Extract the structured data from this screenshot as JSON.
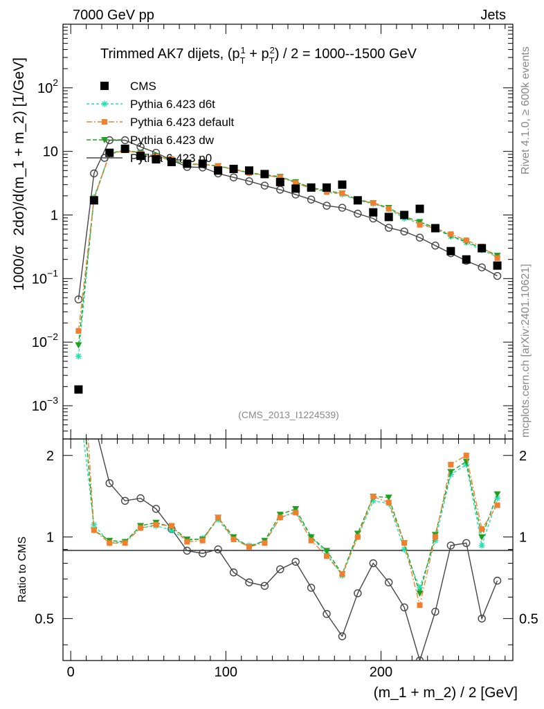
{
  "chart_data": {
    "type": "scatter",
    "header_left": "7000 GeV pp",
    "header_right": "Jets",
    "title": "Trimmed AK7 dijets, (p",
    "title_sub1": "T",
    "title_sup1": "1",
    "title_mid": " + p",
    "title_sub2": "T",
    "title_sup2": "2",
    "title_end": ") / 2 = 1000--1500 GeV",
    "ylabel_part1": "1000/σ",
    "ylabel_part2": "2dσ)/d(m_1 + m_2) [1/GeV]",
    "ratio_ylabel": "Ratio to CMS",
    "xlabel": "(m_1 + m_2) / 2 [GeV]",
    "watermark": "(CMS_2013_I1224539)",
    "side_text_top": "Rivet 4.1.0, ≥ 600k events",
    "side_text_bottom": "mcplots.cern.ch [arXiv:2401.10621]",
    "xlim": [
      -5,
      285
    ],
    "ylim_log": [
      0.0003,
      1000
    ],
    "ratio_ylim": [
      0.35,
      2.3
    ],
    "x_ticks": [
      "0",
      "100",
      "200"
    ],
    "x_tick_values": [
      0,
      100,
      200
    ],
    "y_ticks": [
      "10",
      "10",
      "10",
      "1",
      "10",
      "10",
      "10"
    ],
    "y_tick_exps": [
      "2",
      "",
      "",
      "",
      "−1",
      "−2",
      "−3"
    ],
    "y_tick_values": [
      100,
      10,
      1,
      0.1,
      0.01,
      0.001
    ],
    "ratio_ticks": [
      "2",
      "1",
      "0.5"
    ],
    "ratio_tick_values": [
      2,
      1,
      0.5
    ],
    "x": [
      5,
      15,
      25,
      35,
      45,
      55,
      65,
      75,
      85,
      95,
      105,
      115,
      125,
      135,
      145,
      155,
      165,
      175,
      185,
      195,
      205,
      215,
      225,
      235,
      245,
      255,
      265,
      275
    ],
    "series": [
      {
        "name": "CMS",
        "color": "#000000",
        "marker": "square",
        "values": [
          0.0018,
          1.7,
          9.5,
          11,
          8.5,
          7.5,
          6.8,
          6.4,
          6.4,
          5.0,
          5.3,
          5.0,
          4.4,
          3.3,
          2.6,
          2.7,
          2.7,
          3.0,
          1.7,
          1.1,
          0.93,
          1.0,
          1.25,
          0.62,
          0.27,
          0.2,
          0.3,
          0.16
        ]
      },
      {
        "name": "Pythia 6.423 d6t",
        "color": "#20e0b0",
        "marker": "star",
        "dash": "4,3",
        "values": [
          0.006,
          1.9,
          9.0,
          10.5,
          9.2,
          8.3,
          7.2,
          6.2,
          6.3,
          5.8,
          5.2,
          4.5,
          4.2,
          3.9,
          3.3,
          2.7,
          2.3,
          2.1,
          1.7,
          1.5,
          1.25,
          0.88,
          0.75,
          0.6,
          0.46,
          0.37,
          0.28,
          0.22
        ]
      },
      {
        "name": "Pythia 6.423 default",
        "color": "#f08030",
        "marker": "square-small",
        "dash": "8,3,2,3",
        "values": [
          0.015,
          1.8,
          9.0,
          10.4,
          9.2,
          8.3,
          7.5,
          6.2,
          6.2,
          5.9,
          5.2,
          4.6,
          4.2,
          3.9,
          3.2,
          2.6,
          2.3,
          2.2,
          1.7,
          1.55,
          1.25,
          0.95,
          0.7,
          0.62,
          0.5,
          0.4,
          0.32,
          0.21
        ]
      },
      {
        "name": "Pythia 6.423 dw",
        "color": "#20a020",
        "marker": "triangle-down",
        "dash": "6,3",
        "values": [
          0.009,
          1.8,
          9.2,
          10.6,
          9.4,
          8.5,
          7.4,
          6.3,
          6.3,
          5.9,
          5.3,
          4.6,
          4.3,
          4.0,
          3.3,
          2.7,
          2.4,
          2.2,
          1.75,
          1.55,
          1.3,
          0.95,
          0.78,
          0.63,
          0.47,
          0.38,
          0.3,
          0.23
        ]
      },
      {
        "name": "Pythia 6.423 p0",
        "color": "#444444",
        "marker": "circle-open",
        "dash": "",
        "values": [
          0.047,
          4.5,
          15,
          15,
          11.8,
          9.5,
          7.3,
          5.7,
          5.6,
          4.5,
          3.9,
          3.4,
          2.9,
          2.5,
          2.1,
          1.75,
          1.4,
          1.3,
          1.05,
          0.88,
          0.63,
          0.55,
          0.44,
          0.33,
          0.25,
          0.19,
          0.15,
          0.11
        ]
      }
    ],
    "ratio_series": [
      {
        "name": "Pythia 6.423 d6t",
        "values": [
          3.3,
          1.11,
          0.95,
          0.96,
          1.08,
          1.1,
          1.06,
          0.97,
          0.99,
          1.16,
          0.98,
          0.93,
          0.96,
          1.18,
          1.24,
          1.0,
          0.87,
          0.72,
          1.0,
          1.36,
          1.33,
          0.9,
          0.65,
          0.97,
          1.7,
          1.85,
          0.93,
          1.39
        ]
      },
      {
        "name": "Pythia 6.423 default",
        "values": [
          8.3,
          1.06,
          0.95,
          0.95,
          1.08,
          1.11,
          1.1,
          0.96,
          0.97,
          1.18,
          0.98,
          0.92,
          0.95,
          1.18,
          1.23,
          0.97,
          0.85,
          0.73,
          1.0,
          1.41,
          1.34,
          0.95,
          0.56,
          1.0,
          1.85,
          2.0,
          1.07,
          1.31
        ]
      },
      {
        "name": "Pythia 6.423 dw",
        "values": [
          5.0,
          1.06,
          0.97,
          0.96,
          1.1,
          1.13,
          1.09,
          0.98,
          0.98,
          1.18,
          1.0,
          0.92,
          0.97,
          1.21,
          1.27,
          1.0,
          0.89,
          0.73,
          1.03,
          1.41,
          1.4,
          0.95,
          0.62,
          1.02,
          1.74,
          1.9,
          1.0,
          1.44
        ]
      },
      {
        "name": "Pythia 6.423 p0",
        "values": [
          26,
          2.65,
          1.58,
          1.36,
          1.39,
          1.27,
          1.07,
          0.89,
          0.87,
          0.9,
          0.74,
          0.68,
          0.66,
          0.76,
          0.81,
          0.65,
          0.52,
          0.43,
          0.62,
          0.8,
          0.68,
          0.55,
          0.35,
          0.53,
          0.93,
          0.95,
          0.5,
          0.69
        ]
      }
    ]
  }
}
